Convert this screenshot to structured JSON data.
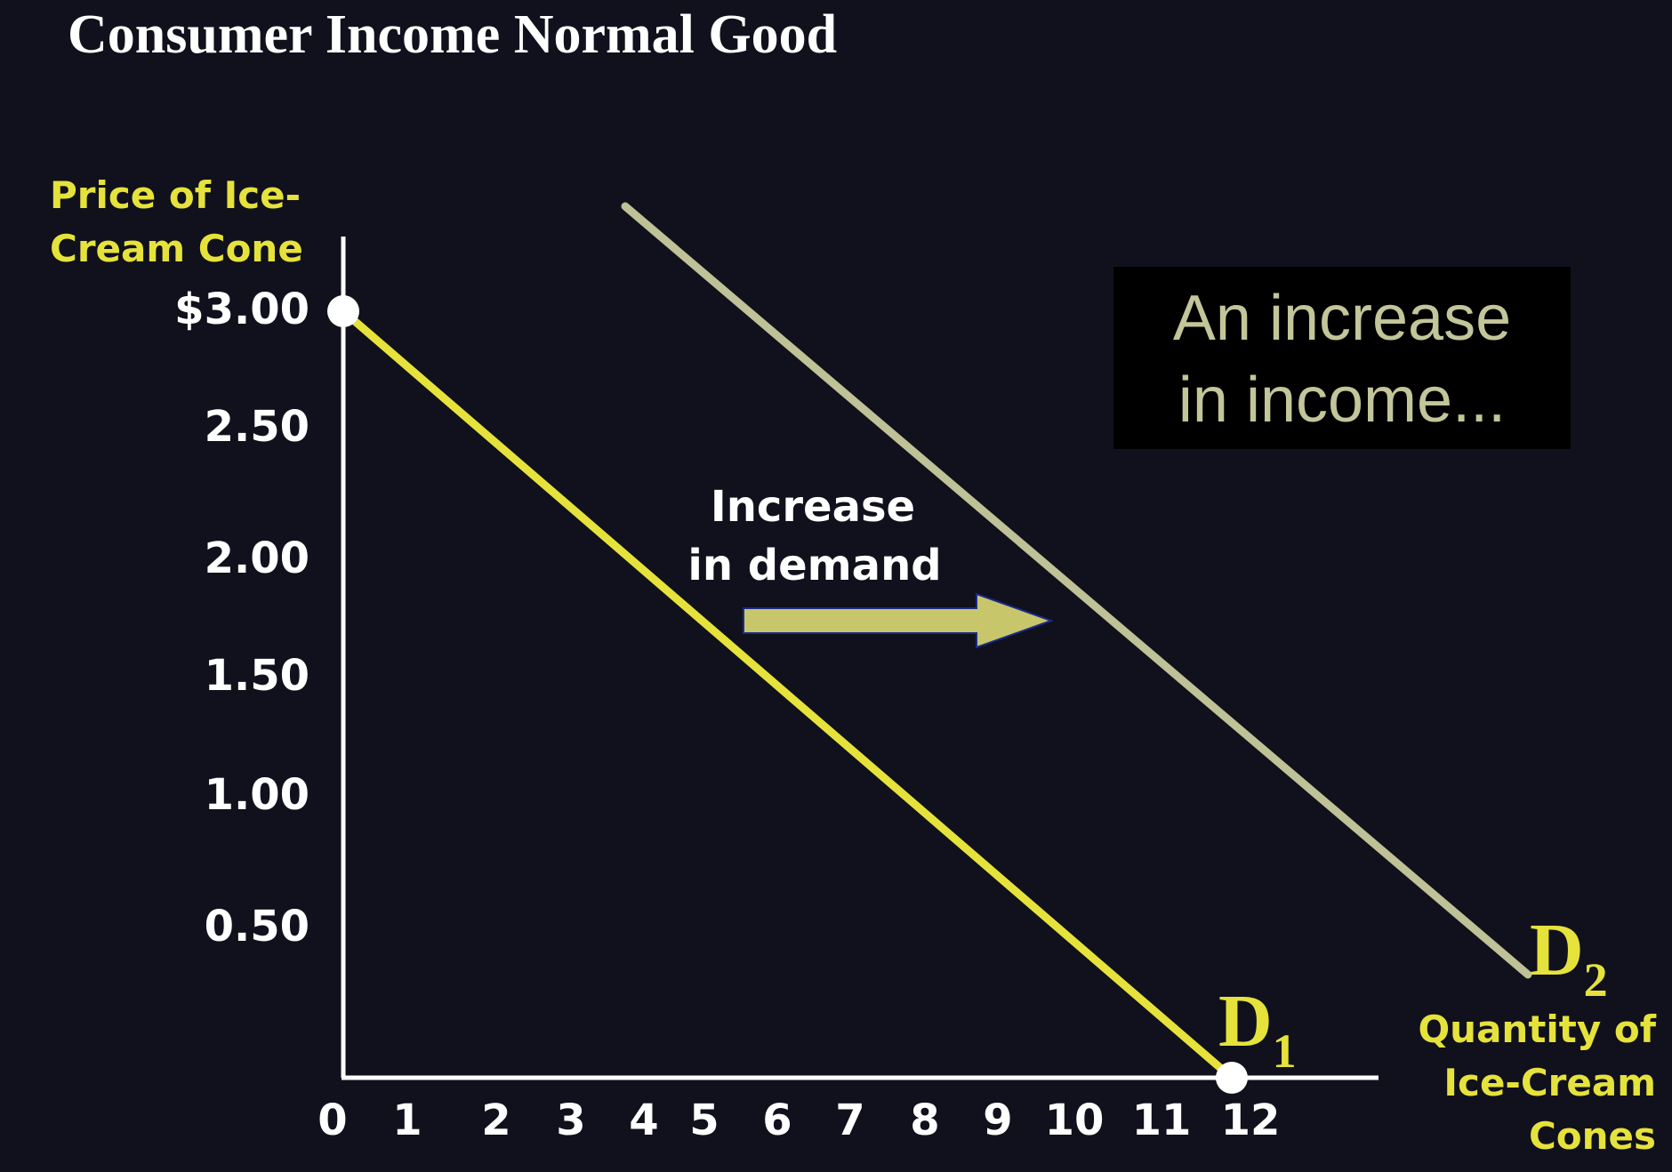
{
  "title": "Consumer Income Normal Good",
  "callout": {
    "line1": "An increase",
    "line2": "in income..."
  },
  "annotation": {
    "line1": "Increase",
    "line2": "in demand"
  },
  "colors": {
    "background": "#10111c",
    "d1": "#e6e23c",
    "d2": "#bfc196",
    "arrow": "#c8c66a",
    "label": "#e6e23c",
    "text": "#ffffff"
  },
  "chart_data": {
    "type": "line",
    "ylabel": [
      "Price of Ice-",
      "Cream Cone"
    ],
    "xlabel": [
      "Quantity of",
      "Ice-Cream",
      "Cones"
    ],
    "y_ticks": [
      {
        "value": 3.0,
        "label": "$3.00"
      },
      {
        "value": 2.5,
        "label": "2.50"
      },
      {
        "value": 2.0,
        "label": "2.00"
      },
      {
        "value": 1.5,
        "label": "1.50"
      },
      {
        "value": 1.0,
        "label": "1.00"
      },
      {
        "value": 0.5,
        "label": "0.50"
      }
    ],
    "x_ticks": [
      {
        "value": 0,
        "label": "0"
      },
      {
        "value": 1,
        "label": "1"
      },
      {
        "value": 2,
        "label": "2"
      },
      {
        "value": 3,
        "label": "3"
      },
      {
        "value": 4,
        "label": "4"
      },
      {
        "value": 5,
        "label": "5"
      },
      {
        "value": 6,
        "label": "6"
      },
      {
        "value": 7,
        "label": "7"
      },
      {
        "value": 8,
        "label": "8"
      },
      {
        "value": 9,
        "label": "9"
      },
      {
        "value": 10,
        "label": "10"
      },
      {
        "value": 11,
        "label": "11"
      },
      {
        "value": 12,
        "label": "12"
      }
    ],
    "xlim": [
      0,
      14
    ],
    "ylim": [
      0,
      3.4
    ],
    "series": [
      {
        "name": "D",
        "subscript": "1",
        "points": [
          [
            0,
            3.0
          ],
          [
            12,
            0
          ]
        ],
        "endpoints_marked": true
      },
      {
        "name": "D",
        "subscript": "2",
        "points": [
          [
            4,
            3.5
          ],
          [
            16,
            0.4
          ]
        ],
        "endpoints_marked": false
      }
    ],
    "shift_arrow": {
      "from": [
        5.6,
        1.9
      ],
      "to": [
        9.8,
        1.9
      ],
      "direction": "right"
    }
  }
}
